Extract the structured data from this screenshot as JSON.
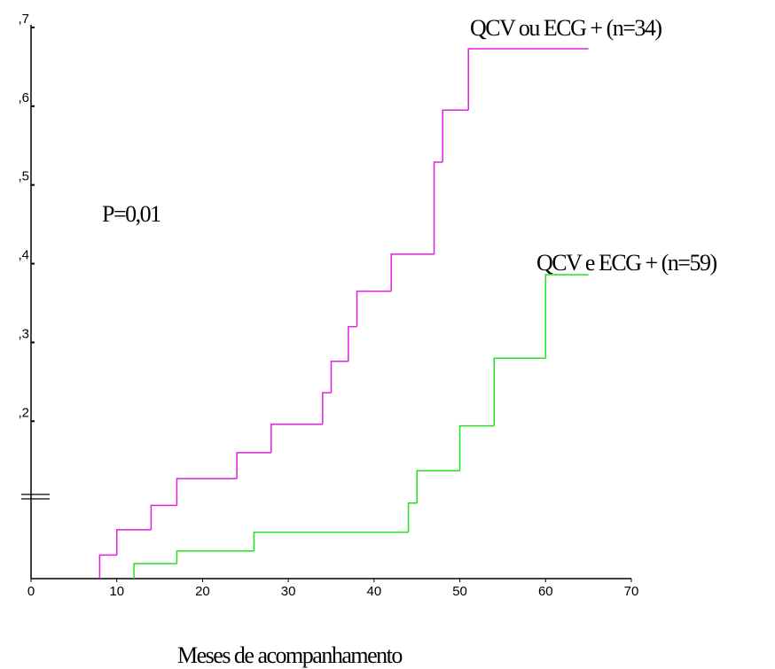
{
  "chart_data": {
    "type": "step",
    "x_label": "Meses de acompanhamento",
    "annotation": "P=0,01",
    "xlim": [
      0,
      70
    ],
    "xticks": [
      0,
      10,
      20,
      30,
      40,
      50,
      60,
      70
    ],
    "ylim": [
      0,
      0.7
    ],
    "yticks": [
      {
        "value": 0.2,
        "label": ",2"
      },
      {
        "value": 0.3,
        "label": ",3"
      },
      {
        "value": 0.4,
        "label": ",4"
      },
      {
        "value": 0.5,
        "label": ",5"
      },
      {
        "value": 0.6,
        "label": ",6"
      },
      {
        "value": 0.7,
        "label": ",7"
      }
    ],
    "series": [
      {
        "name": "QCV ou ECG + (n=34)",
        "color": "#e020e0",
        "x": [
          8,
          10,
          14,
          17,
          24,
          28,
          34,
          35,
          37,
          38,
          42,
          47,
          48,
          51,
          65
        ],
        "values": [
          0.03,
          0.062,
          0.093,
          0.127,
          0.16,
          0.196,
          0.236,
          0.276,
          0.32,
          0.365,
          0.412,
          0.529,
          0.595,
          0.673,
          0.673
        ]
      },
      {
        "name": "QCV e ECG + (n=59)",
        "color": "#20e020",
        "x": [
          12,
          17,
          26,
          44,
          45,
          50,
          54,
          60,
          65
        ],
        "values": [
          0.019,
          0.035,
          0.059,
          0.096,
          0.137,
          0.194,
          0.28,
          0.386,
          0.386
        ]
      }
    ]
  }
}
